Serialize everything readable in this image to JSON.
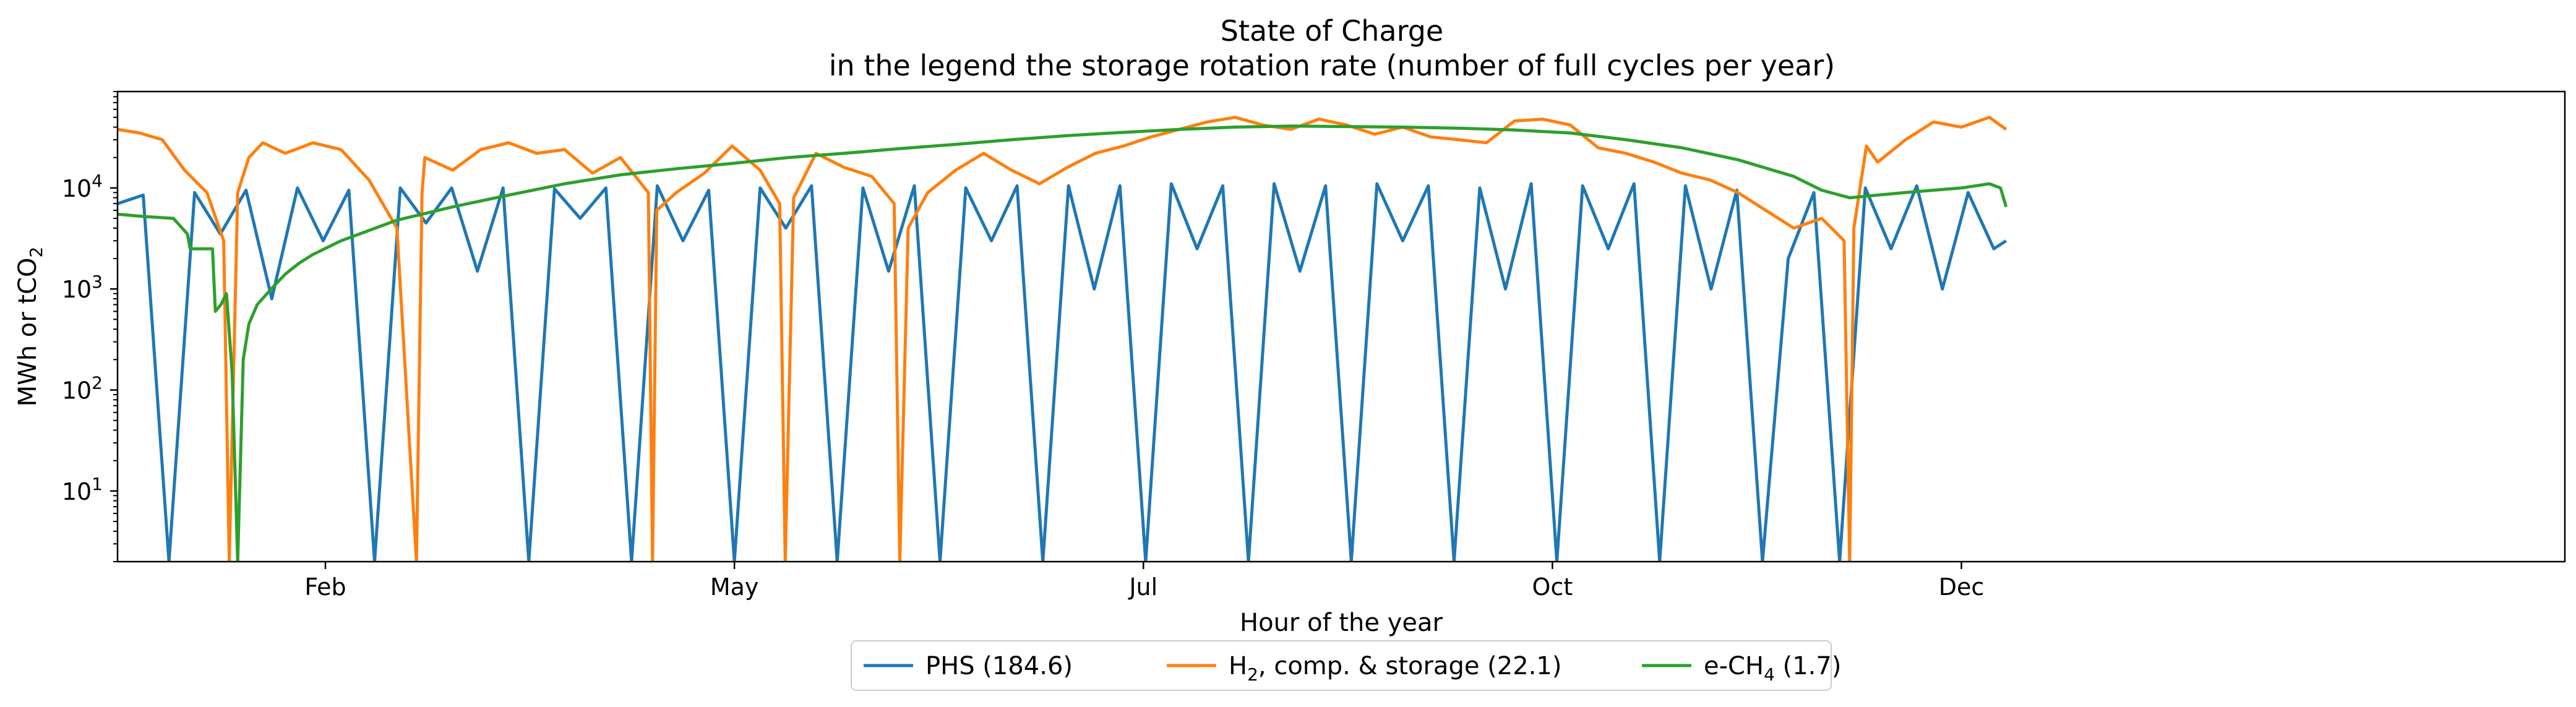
{
  "chart_data": {
    "type": "line",
    "title": "State of Charge",
    "subtitle": "in the legend the storage rotation rate (number of full cycles per year)",
    "xlabel": "Hour of the year",
    "ylabel": {
      "prefix": "MWh or tCO",
      "sub": "2"
    },
    "yscale": "log",
    "ylim": [
      2,
      90000
    ],
    "xlim": [
      0,
      8760
    ],
    "x_ticks": [
      {
        "x": 744,
        "label": "Feb"
      },
      {
        "x": 2208,
        "label": "May"
      },
      {
        "x": 3672,
        "label": "Jul"
      },
      {
        "x": 5136,
        "label": "Oct"
      },
      {
        "x": 6600,
        "label": "Dec"
      }
    ],
    "y_ticks": [
      {
        "y": 10,
        "base": "10",
        "exp": "1"
      },
      {
        "y": 100,
        "base": "10",
        "exp": "2"
      },
      {
        "y": 1000,
        "base": "10",
        "exp": "3"
      },
      {
        "y": 10000,
        "base": "10",
        "exp": "4"
      }
    ],
    "legend_position": "bottom-center",
    "series": [
      {
        "key": "phs",
        "name": "PHS (184.6)",
        "legend": {
          "pre": "PHS (184.6)",
          "sub": "",
          "post": ""
        },
        "color": "#1f77b4",
        "x": [
          0,
          92,
          184,
          276,
          368,
          460,
          552,
          644,
          736,
          828,
          920,
          1012,
          1104,
          1196,
          1288,
          1380,
          1472,
          1564,
          1656,
          1748,
          1840,
          1932,
          2024,
          2116,
          2208,
          2300,
          2392,
          2484,
          2576,
          2668,
          2760,
          2852,
          2944,
          3036,
          3128,
          3220,
          3312,
          3404,
          3496,
          3588,
          3680,
          3772,
          3864,
          3956,
          4048,
          4140,
          4232,
          4324,
          4416,
          4508,
          4600,
          4692,
          4784,
          4876,
          4968,
          5060,
          5152,
          5244,
          5336,
          5428,
          5520,
          5612,
          5704,
          5796,
          5888,
          5980,
          6072,
          6164,
          6256,
          6348,
          6440,
          6532,
          6624,
          6716,
          6760
        ],
        "y": [
          7000,
          8500,
          2,
          9000,
          3500,
          9500,
          800,
          10000,
          3000,
          9500,
          2,
          10000,
          4500,
          10000,
          1500,
          10000,
          2,
          9800,
          5000,
          10000,
          2,
          10500,
          3000,
          9500,
          2,
          10000,
          4000,
          10500,
          2,
          10000,
          1500,
          10500,
          2,
          10000,
          3000,
          10500,
          2,
          10500,
          1000,
          10500,
          2,
          11000,
          2500,
          10500,
          2,
          11000,
          1500,
          10500,
          2,
          11000,
          3000,
          10500,
          2,
          10000,
          1000,
          11000,
          2,
          10500,
          2500,
          11000,
          2,
          10500,
          1000,
          9500,
          2,
          2000,
          9000,
          2,
          10000,
          2500,
          10500,
          1000,
          9000,
          2500,
          3000
        ]
      },
      {
        "key": "h2",
        "name": "H2, comp. & storage (22.1)",
        "legend": {
          "pre": "H",
          "sub": "2",
          "post": ", comp. & storage (22.1)"
        },
        "color": "#ff7f0e",
        "x": [
          0,
          80,
          160,
          240,
          320,
          380,
          400,
          430,
          470,
          520,
          600,
          700,
          800,
          900,
          1000,
          1070,
          1090,
          1100,
          1200,
          1300,
          1400,
          1500,
          1600,
          1700,
          1800,
          1900,
          1915,
          1930,
          2000,
          2100,
          2200,
          2300,
          2370,
          2390,
          2420,
          2500,
          2600,
          2700,
          2780,
          2800,
          2830,
          2900,
          3000,
          3100,
          3200,
          3300,
          3400,
          3500,
          3600,
          3700,
          3800,
          3900,
          4000,
          4100,
          4200,
          4300,
          4400,
          4500,
          4600,
          4700,
          4800,
          4900,
          5000,
          5100,
          5200,
          5300,
          5400,
          5500,
          5600,
          5700,
          5800,
          5900,
          6000,
          6100,
          6180,
          6200,
          6215,
          6260,
          6300,
          6400,
          6500,
          6600,
          6700,
          6760
        ],
        "y": [
          38000,
          35000,
          30000,
          15000,
          9000,
          3000,
          2,
          9000,
          20000,
          28000,
          22000,
          28000,
          24000,
          12000,
          4000,
          2,
          9000,
          20000,
          15000,
          24000,
          28000,
          22000,
          24000,
          14000,
          20000,
          9000,
          2,
          6000,
          9000,
          14000,
          26000,
          15000,
          7000,
          2,
          8000,
          22000,
          16000,
          13000,
          7000,
          2,
          4000,
          9000,
          15000,
          22000,
          15000,
          11000,
          16000,
          22000,
          26000,
          32000,
          38000,
          45000,
          50000,
          42000,
          38000,
          48000,
          42000,
          34000,
          40000,
          32000,
          30000,
          28000,
          46000,
          48000,
          42000,
          25000,
          22000,
          18000,
          14000,
          12000,
          9000,
          6000,
          4000,
          5000,
          3000,
          2,
          4000,
          26000,
          18000,
          30000,
          45000,
          40000,
          50000,
          38000
        ]
      },
      {
        "key": "ch4",
        "name": "e-CH4 (1.7)",
        "legend": {
          "pre": "e-CH",
          "sub": "4",
          "post": " (1.7)"
        },
        "color": "#2ca02c",
        "x": [
          0,
          100,
          200,
          250,
          260,
          340,
          350,
          370,
          390,
          410,
          430,
          450,
          470,
          500,
          550,
          600,
          650,
          700,
          800,
          1000,
          1200,
          1400,
          1600,
          1800,
          2000,
          2200,
          2400,
          2600,
          2800,
          3000,
          3200,
          3400,
          3600,
          3800,
          4000,
          4200,
          4400,
          4600,
          4800,
          5000,
          5200,
          5400,
          5600,
          5800,
          6000,
          6100,
          6200,
          6300,
          6400,
          6500,
          6600,
          6700,
          6740,
          6760
        ],
        "y": [
          5500,
          5200,
          5000,
          3500,
          2500,
          2500,
          600,
          700,
          900,
          150,
          2,
          200,
          450,
          700,
          1000,
          1400,
          1800,
          2200,
          3000,
          4800,
          6500,
          8500,
          11000,
          13500,
          15500,
          17500,
          20000,
          22000,
          24500,
          27000,
          30000,
          33000,
          35500,
          38000,
          40000,
          41000,
          40500,
          40000,
          39000,
          37500,
          35000,
          30000,
          25000,
          19000,
          13000,
          9500,
          8000,
          8500,
          9000,
          9500,
          10000,
          11000,
          10000,
          6500
        ]
      }
    ]
  }
}
